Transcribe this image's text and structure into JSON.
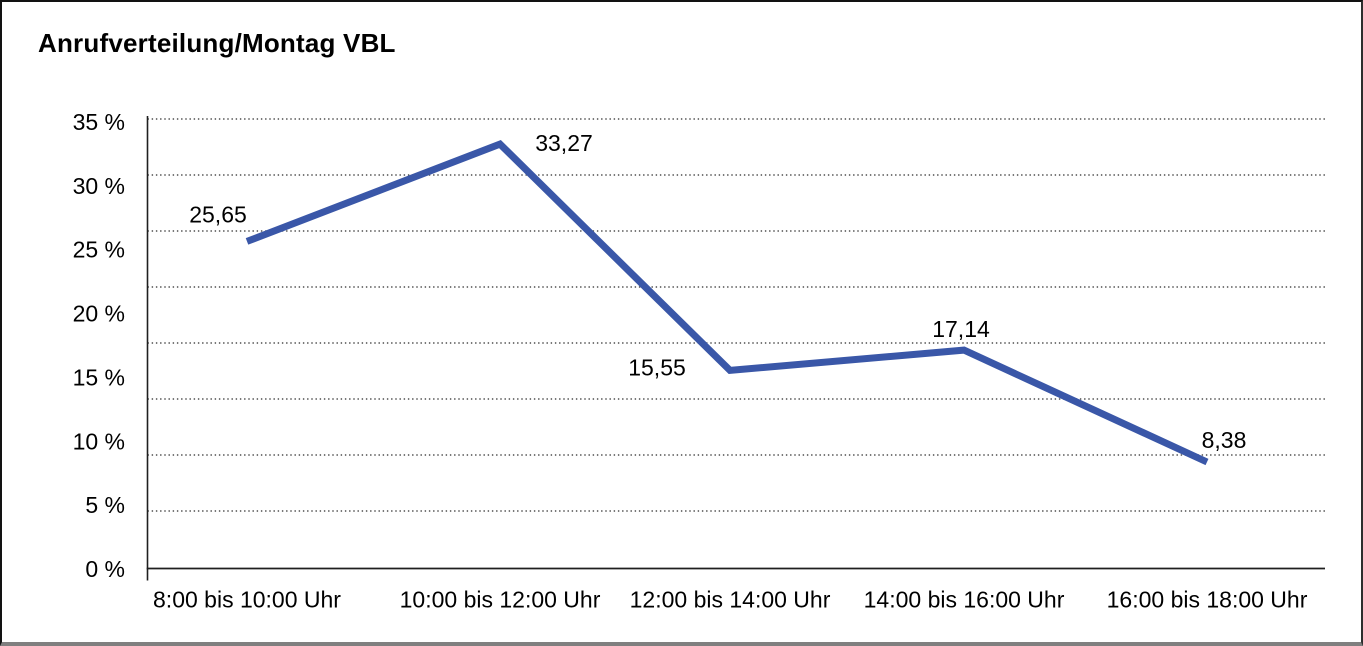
{
  "chart_data": {
    "type": "line",
    "title": "Anrufverteilung/Montag VBL",
    "categories": [
      "8:00 bis 10:00 Uhr",
      "10:00 bis 12:00 Uhr",
      "12:00 bis 14:00 Uhr",
      "14:00 bis 16:00 Uhr",
      "16:00 bis 18:00 Uhr"
    ],
    "values": [
      25.65,
      33.27,
      15.55,
      17.14,
      8.38
    ],
    "value_labels": [
      "25,65",
      "33,27",
      "15,55",
      "17,14",
      "8,38"
    ],
    "y_ticks": [
      "35 %",
      "30 %",
      "25 %",
      "20 %",
      "15 %",
      "10 %",
      "5 %",
      "0 %"
    ],
    "ylim": [
      0,
      35
    ],
    "y_unit": "%",
    "xlabel": "",
    "ylabel": "",
    "grid": "horizontal-dotted",
    "legend": "none",
    "colors": {
      "line": "#3a57a8",
      "text": "#000000",
      "gridline": "#4d4d4d",
      "axis": "#1f1f1f",
      "background": "#ffffff"
    }
  }
}
